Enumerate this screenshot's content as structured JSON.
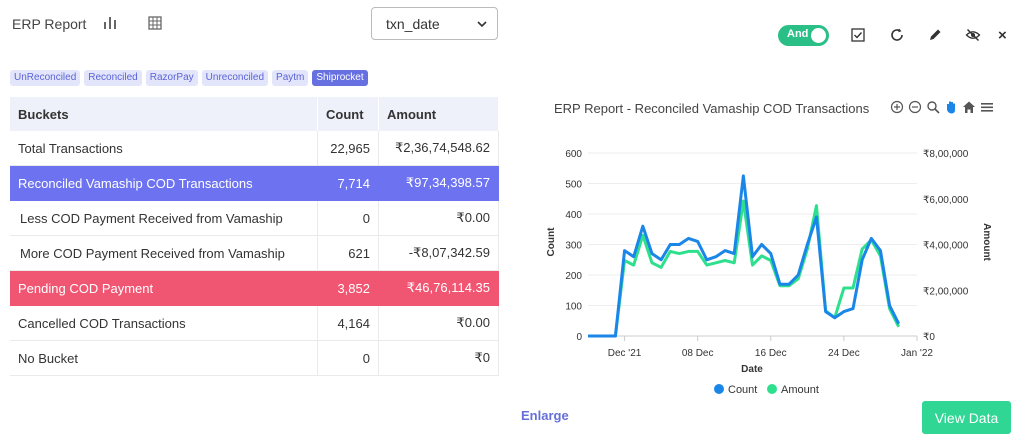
{
  "header": {
    "title": "ERP Report",
    "select_value": "txn_date",
    "toggle_label": "And",
    "close_label": "×"
  },
  "tags": [
    {
      "label": "UnReconciled",
      "active": false
    },
    {
      "label": "Reconciled",
      "active": false
    },
    {
      "label": "RazorPay",
      "active": false
    },
    {
      "label": "Unreconciled",
      "active": false
    },
    {
      "label": "Paytm",
      "active": false
    },
    {
      "label": "Shiprocket",
      "active": true
    }
  ],
  "table": {
    "headers": [
      "Buckets",
      "Count",
      "Amount"
    ],
    "rows": [
      {
        "bucket": "Total Transactions",
        "count": "22,965",
        "amount": "₹2,36,74,548.62",
        "style": ""
      },
      {
        "bucket": "Reconciled Vamaship COD Transactions",
        "count": "7,714",
        "amount": "₹97,34,398.57",
        "style": "blue"
      },
      {
        "bucket": "Less COD Payment Received from Vamaship",
        "count": "0",
        "amount": "₹0.00",
        "style": "ind"
      },
      {
        "bucket": "More COD Payment Received from Vamaship",
        "count": "621",
        "amount": "-₹8,07,342.59",
        "style": "ind"
      },
      {
        "bucket": "Pending COD Payment",
        "count": "3,852",
        "amount": "₹46,76,114.35",
        "style": "red"
      },
      {
        "bucket": "Cancelled COD Transactions",
        "count": "4,164",
        "amount": "₹0.00",
        "style": ""
      },
      {
        "bucket": "No Bucket",
        "count": "0",
        "amount": "₹0",
        "style": ""
      }
    ]
  },
  "chart_data": {
    "type": "line",
    "title": "ERP Report - Reconciled Vamaship COD Transactions",
    "xlabel": "Date",
    "ylabel": "Count",
    "y2label": "Amount",
    "ylim": [
      0,
      600
    ],
    "y2lim": [
      0,
      800000
    ],
    "y_ticks": [
      "0",
      "100",
      "200",
      "300",
      "400",
      "500",
      "600"
    ],
    "y2_ticks": [
      "₹0",
      "₹2,00,000",
      "₹4,00,000",
      "₹6,00,000",
      "₹8,00,000"
    ],
    "x_ticks": [
      "Dec '21",
      "08 Dec",
      "16 Dec",
      "24 Dec",
      "Jan '22"
    ],
    "x_tick_index": [
      4,
      12,
      20,
      28,
      36
    ],
    "legend_position": "bottom",
    "series": [
      {
        "name": "Count",
        "color": "#1a86e8",
        "values": [
          0,
          0,
          0,
          0,
          280,
          260,
          360,
          270,
          250,
          300,
          300,
          320,
          310,
          250,
          260,
          280,
          270,
          525,
          260,
          300,
          270,
          170,
          170,
          200,
          300,
          390,
          80,
          60,
          80,
          90,
          250,
          320,
          280,
          100,
          40
        ]
      },
      {
        "name": "Amount",
        "color": "#2ee08e",
        "values": [
          0,
          0,
          0,
          0,
          330000,
          310000,
          440000,
          320000,
          300000,
          370000,
          360000,
          370000,
          370000,
          310000,
          320000,
          330000,
          320000,
          590000,
          310000,
          350000,
          330000,
          220000,
          220000,
          250000,
          380000,
          570000,
          110000,
          80000,
          210000,
          210000,
          380000,
          420000,
          350000,
          120000,
          40000
        ]
      }
    ]
  },
  "footer": {
    "enlarge_label": "Enlarge",
    "view_data_label": "View Data"
  }
}
